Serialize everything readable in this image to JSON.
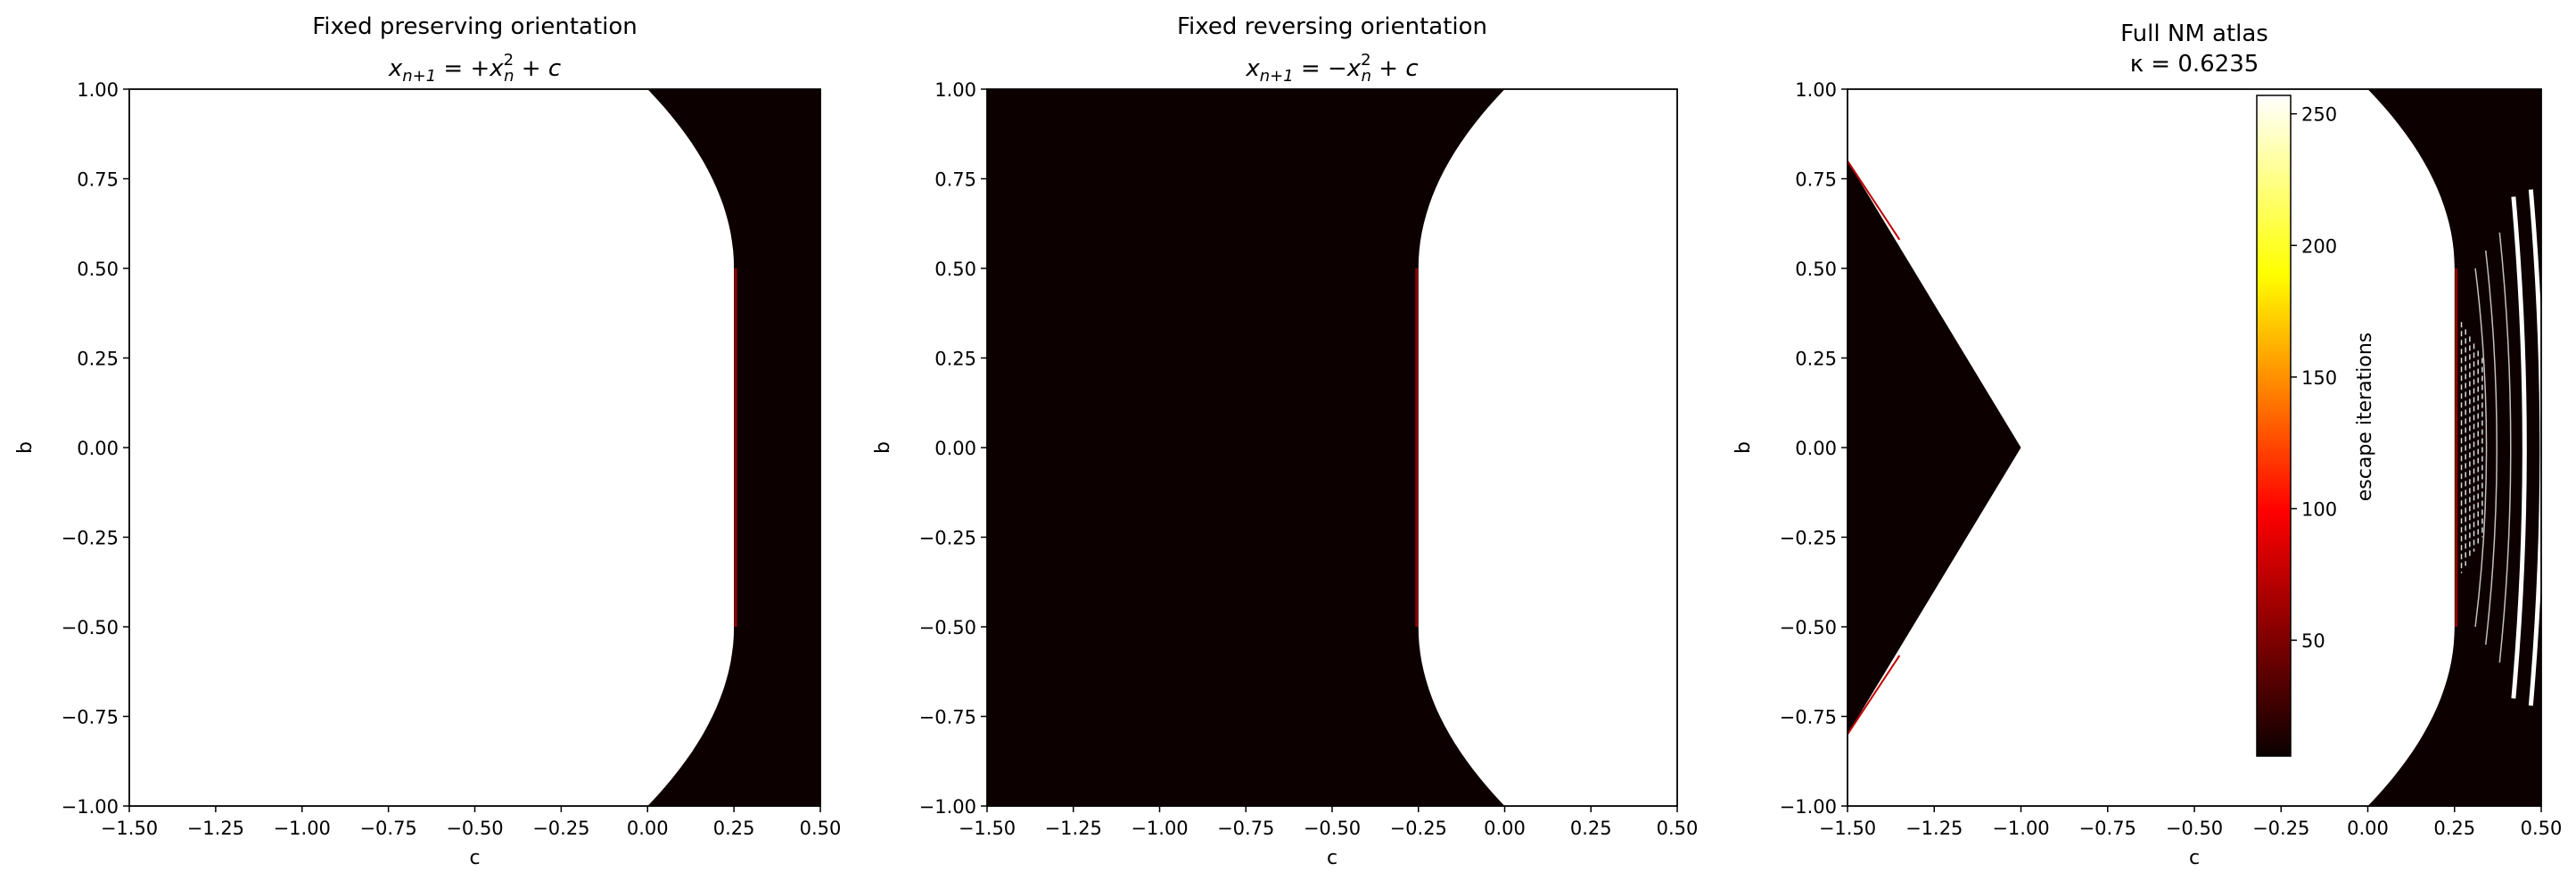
{
  "chart_data": [
    {
      "type": "heatmap",
      "title": "Fixed preserving orientation",
      "formula": {
        "lhs": "x",
        "lhs_sub": "n+1",
        "eq": " = +",
        "rhs": "x",
        "rhs_sub": "n",
        "rhs_sup": "2",
        "tail": " + c"
      },
      "xlabel": "c",
      "ylabel": "b",
      "xlim": [
        -1.5,
        0.5
      ],
      "ylim": [
        -1.0,
        1.0
      ],
      "xticks": [
        "−1.50",
        "−1.25",
        "−1.00",
        "−0.75",
        "−0.50",
        "−0.25",
        "0.00",
        "0.25",
        "0.50"
      ],
      "yticks": [
        "−1.00",
        "−0.75",
        "−0.50",
        "−0.25",
        "0.00",
        "0.25",
        "0.50",
        "0.75",
        "1.00"
      ],
      "region": "bounded-right",
      "boundary": {
        "c_at_b_1": 0.0,
        "c_at_b_0_5": 0.25
      }
    },
    {
      "type": "heatmap",
      "title": "Fixed reversing orientation",
      "formula": {
        "lhs": "x",
        "lhs_sub": "n+1",
        "eq": " = −",
        "rhs": "x",
        "rhs_sub": "n",
        "rhs_sup": "2",
        "tail": " + c"
      },
      "xlabel": "c",
      "ylabel": "b",
      "xlim": [
        -1.5,
        0.5
      ],
      "ylim": [
        -1.0,
        1.0
      ],
      "xticks": [
        "−1.50",
        "−1.25",
        "−1.00",
        "−0.75",
        "−0.50",
        "−0.25",
        "0.00",
        "0.25",
        "0.50"
      ],
      "yticks": [
        "−1.00",
        "−0.75",
        "−0.50",
        "−0.25",
        "0.00",
        "0.25",
        "0.50",
        "0.75",
        "1.00"
      ],
      "region": "bounded-left",
      "boundary": {
        "c_at_b_1": 0.0,
        "c_at_b_0_5": -0.25
      }
    },
    {
      "type": "heatmap",
      "title": "Full NM atlas",
      "subtitle": "κ = 0.6235",
      "xlabel": "c",
      "ylabel": "b",
      "xlim": [
        -1.5,
        0.5
      ],
      "ylim": [
        -1.0,
        1.0
      ],
      "xticks": [
        "−1.50",
        "−1.25",
        "−1.00",
        "−0.75",
        "−0.50",
        "−0.25",
        "0.00",
        "0.25",
        "0.50"
      ],
      "yticks": [
        "−1.00",
        "−0.75",
        "−0.50",
        "−0.25",
        "0.00",
        "0.25",
        "0.50",
        "0.75",
        "1.00"
      ],
      "region": "atlas",
      "triangle": [
        [
          -1.5,
          0.8
        ],
        [
          -1.0,
          0.0
        ],
        [
          -1.5,
          -0.8
        ]
      ],
      "boundary": {
        "c_at_b_1": 0.0,
        "c_at_b_0_5": 0.25
      },
      "colorbar": {
        "label": "escape iterations",
        "range": [
          6,
          257
        ],
        "ticks": [
          50,
          100,
          150,
          200,
          250
        ],
        "tick_labels": [
          "50",
          "100",
          "150",
          "200",
          "250"
        ],
        "cmap": "hot"
      }
    }
  ]
}
